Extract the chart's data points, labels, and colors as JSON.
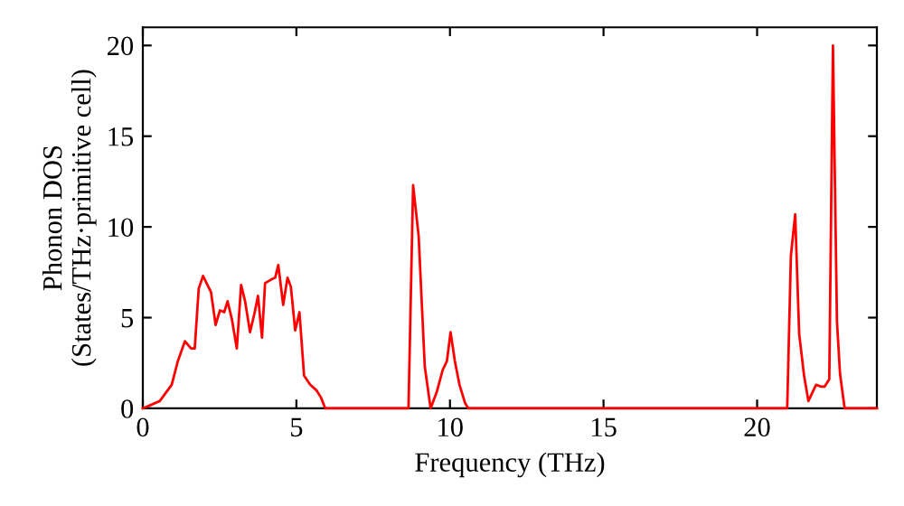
{
  "chart_data": {
    "type": "line",
    "xlabel": "Frequency (THz)",
    "ylabel": "Phonon DOS\n(States/THz·primitive cell)",
    "xlim": [
      0,
      23.9
    ],
    "ylim": [
      0,
      21
    ],
    "xticks": [
      0,
      5,
      10,
      15,
      20
    ],
    "yticks": [
      0,
      5,
      10,
      15,
      20
    ],
    "grid": false,
    "legend": false,
    "marker": "none",
    "line_style": "solid",
    "series": [
      {
        "color": "#ff0000",
        "x": [
          0,
          0.55,
          0.94,
          1.14,
          1.37,
          1.57,
          1.69,
          1.82,
          1.96,
          2.22,
          2.37,
          2.51,
          2.65,
          2.76,
          2.9,
          3.06,
          3.2,
          3.33,
          3.49,
          3.63,
          3.75,
          3.88,
          3.98,
          4.18,
          4.31,
          4.41,
          4.57,
          4.71,
          4.82,
          4.96,
          5.1,
          5.25,
          5.45,
          5.65,
          5.8,
          5.94,
          8.65,
          8.8,
          8.98,
          9.18,
          9.37,
          9.57,
          9.76,
          9.9,
          10.02,
          10.16,
          10.31,
          10.49,
          10.6,
          20.98,
          21.1,
          21.24,
          21.37,
          21.53,
          21.67,
          21.78,
          21.92,
          22.08,
          22.2,
          22.35,
          22.47,
          22.6,
          22.7,
          22.85,
          23.9
        ],
        "values": [
          0,
          0.4,
          1.3,
          2.6,
          3.7,
          3.3,
          3.3,
          6.6,
          7.3,
          6.4,
          4.6,
          5.4,
          5.3,
          5.9,
          4.9,
          3.3,
          6.8,
          5.9,
          4.2,
          5.2,
          6.2,
          3.9,
          6.9,
          7.1,
          7.2,
          7.9,
          5.7,
          7.2,
          6.7,
          4.3,
          5.3,
          1.8,
          1.3,
          1.0,
          0.6,
          0,
          0,
          12.3,
          9.5,
          2.3,
          0,
          0.9,
          2.1,
          2.6,
          4.2,
          2.6,
          1.3,
          0.3,
          0,
          0,
          8.4,
          10.7,
          4.1,
          1.8,
          0.4,
          0.8,
          1.3,
          1.2,
          1.2,
          1.6,
          20,
          4.8,
          1.9,
          0,
          0
        ]
      }
    ]
  }
}
